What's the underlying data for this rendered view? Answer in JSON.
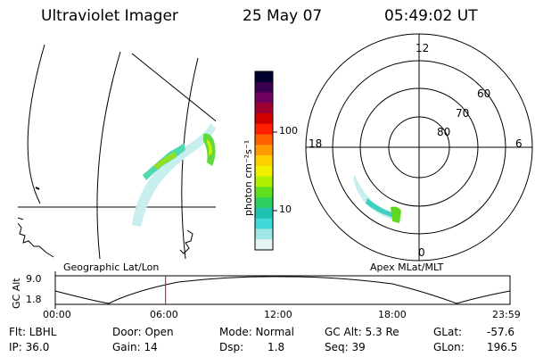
{
  "header": {
    "title": "Ultraviolet Imager",
    "date": "25 May 07",
    "time": "05:49:02 UT"
  },
  "map": {
    "caption": "Geographic Lat/Lon"
  },
  "colorbar": {
    "unit_label": "photon cm⁻²s⁻¹",
    "ticks": [
      "100",
      "10"
    ],
    "colors": [
      "#000030",
      "#3a0050",
      "#700060",
      "#a00030",
      "#d00000",
      "#ff2000",
      "#ff6000",
      "#ff9a00",
      "#ffd000",
      "#f0f000",
      "#b0f000",
      "#60e020",
      "#30d060",
      "#20c0b0",
      "#40d8d8",
      "#a0e8e8",
      "#e6f4f4"
    ]
  },
  "polar": {
    "caption": "Apex MLat/MLT",
    "mlt_labels": [
      "12",
      "18",
      "6",
      "0"
    ],
    "lat_labels": [
      "60",
      "70",
      "80"
    ]
  },
  "timeline": {
    "ylabel": "GC Alt",
    "ytick_top": "9.0",
    "ytick_bottom": "1.8",
    "xticks": [
      "00:00",
      "06:00",
      "12:00",
      "18:00",
      "23:59"
    ],
    "current_hour": 5.82,
    "marker_color": "#cc0000"
  },
  "footer": {
    "flt": "Flt: LBHL",
    "ip": "IP: 36.0",
    "door": "Door: Open",
    "gain": "Gain: 14",
    "mode": "Mode: Normal",
    "dsp_label": "Dsp:",
    "dsp_value": "1.8",
    "gcalt": "GC Alt: 5.3 Re",
    "seq": "Seq: 39",
    "glat_label": "GLat:",
    "glat_value": "-57.6",
    "glon_label": "GLon:",
    "glon_value": "196.5"
  }
}
